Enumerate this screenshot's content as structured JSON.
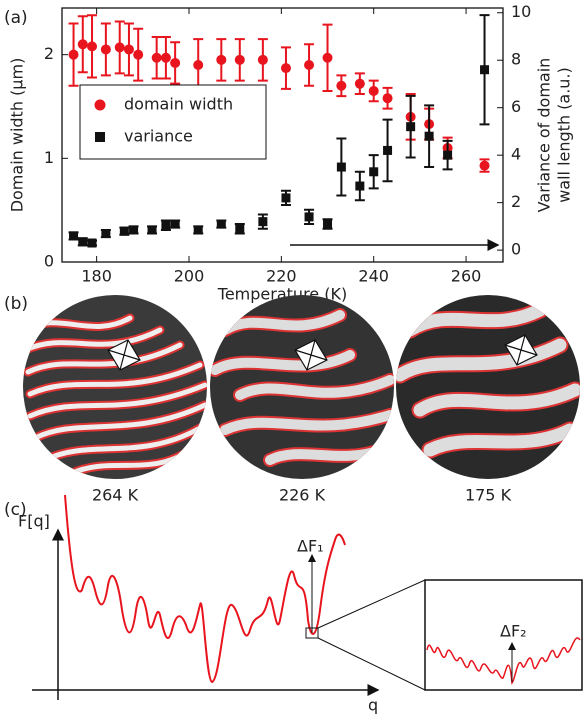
{
  "chart_data": {
    "type": "scatter",
    "xlabel": "Temperature (K)",
    "ylabel": "Domain width (µm)",
    "y2label": [
      "Variance of domain",
      "wall length (a.u.)"
    ],
    "xlim": [
      172.5,
      268
    ],
    "xticks": [
      180,
      200,
      220,
      240,
      260
    ],
    "ylim": [
      0,
      2.45
    ],
    "yticks": [
      0,
      1,
      2
    ],
    "y2lim": [
      -0.5,
      10.2
    ],
    "y2ticks": [
      0,
      2,
      4,
      6,
      8,
      10
    ],
    "legend": "upper left",
    "series": [
      {
        "name": "domain width",
        "color": "#e8141e",
        "marker": "circle",
        "axis": "y",
        "x": [
          175,
          177,
          179,
          182,
          185,
          187,
          189,
          193,
          195,
          197,
          202,
          207,
          211,
          216,
          221,
          226,
          230,
          233,
          237,
          240,
          243,
          248,
          252,
          256,
          264
        ],
        "values": [
          2.0,
          2.1,
          2.08,
          2.05,
          2.07,
          2.05,
          2.0,
          1.97,
          1.97,
          1.92,
          1.9,
          1.95,
          1.95,
          1.95,
          1.87,
          1.9,
          1.97,
          1.7,
          1.72,
          1.65,
          1.58,
          1.4,
          1.33,
          1.1,
          0.93
        ],
        "errors": [
          0.3,
          0.27,
          0.3,
          0.25,
          0.25,
          0.25,
          0.25,
          0.2,
          0.2,
          0.2,
          0.25,
          0.2,
          0.2,
          0.2,
          0.2,
          0.2,
          0.32,
          0.1,
          0.1,
          0.1,
          0.1,
          0.22,
          0.15,
          0.1,
          0.06
        ]
      },
      {
        "name": "variance",
        "color": "#111111",
        "marker": "square",
        "axis": "y2",
        "x": [
          175,
          177,
          179,
          182,
          186,
          188,
          192,
          195,
          197,
          202,
          207,
          211,
          216,
          221,
          226,
          230,
          233,
          237,
          240,
          243,
          248,
          252,
          256,
          264
        ],
        "values": [
          0.6,
          0.35,
          0.3,
          0.7,
          0.8,
          0.85,
          0.85,
          1.05,
          1.1,
          0.85,
          1.1,
          0.9,
          1.2,
          2.2,
          1.4,
          1.1,
          3.5,
          2.7,
          3.3,
          4.2,
          5.2,
          4.8,
          4.0,
          7.6
        ],
        "errors": [
          0.15,
          0.15,
          0.1,
          0.15,
          0.15,
          0.15,
          0.15,
          0.2,
          0.15,
          0.15,
          0.15,
          0.2,
          0.3,
          0.3,
          0.3,
          0.2,
          1.2,
          0.6,
          0.7,
          1.3,
          1.3,
          1.3,
          0.6,
          2.3
        ]
      }
    ]
  },
  "panels": {
    "a": "(a)",
    "b": "(b)",
    "c": "(c)"
  },
  "images": {
    "captions": [
      "264 K",
      "226 K",
      "175 K"
    ]
  },
  "schematic": {
    "ylabel": "F[q]",
    "xlabel": "q",
    "delta1": "ΔF₁",
    "delta2": "ΔF₂"
  }
}
